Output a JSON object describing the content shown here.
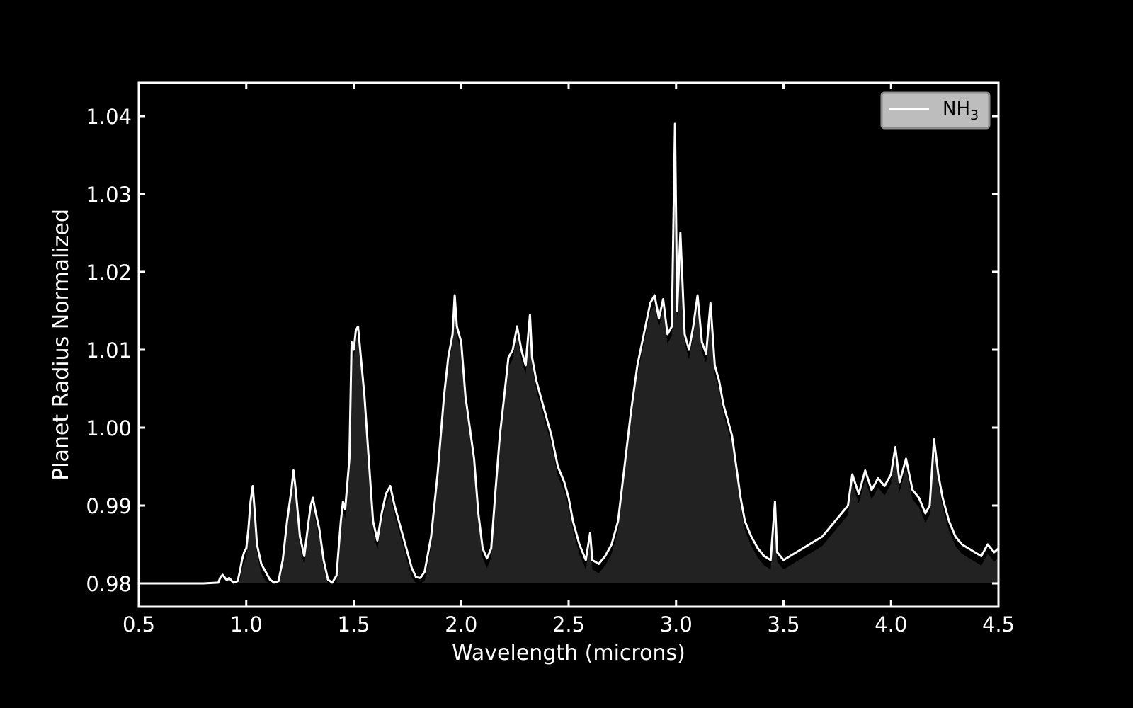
{
  "chart_data": {
    "type": "area",
    "title": "",
    "xlabel": "Wavelength (microns)",
    "ylabel": "Planet Radius Normalized",
    "xlim": [
      0.5,
      4.5
    ],
    "ylim": [
      0.977,
      1.0445
    ],
    "grid": false,
    "legend_position": "upper right",
    "background": "#000000",
    "line_color": "#ffffff",
    "fill_color": "#222222",
    "fill_baseline": 0.98,
    "x_ticks": [
      "0.5",
      "1.0",
      "1.5",
      "2.0",
      "2.5",
      "3.0",
      "3.5",
      "4.0",
      "4.5"
    ],
    "y_ticks": [
      "0.98",
      "0.99",
      "1.00",
      "1.01",
      "1.02",
      "1.03",
      "1.04"
    ],
    "series": [
      {
        "name": "NH3",
        "legend_label_main": "NH",
        "legend_label_sub": "3",
        "points": [
          [
            0.5,
            0.98
          ],
          [
            0.6,
            0.98
          ],
          [
            0.7,
            0.98
          ],
          [
            0.8,
            0.98
          ],
          [
            0.87,
            0.9801
          ],
          [
            0.88,
            0.9808
          ],
          [
            0.89,
            0.9811
          ],
          [
            0.91,
            0.9804
          ],
          [
            0.92,
            0.9807
          ],
          [
            0.94,
            0.9801
          ],
          [
            0.96,
            0.9803
          ],
          [
            0.97,
            0.9815
          ],
          [
            0.98,
            0.983
          ],
          [
            0.99,
            0.984
          ],
          [
            1.0,
            0.9845
          ],
          [
            1.01,
            0.987
          ],
          [
            1.02,
            0.9905
          ],
          [
            1.03,
            0.9925
          ],
          [
            1.04,
            0.989
          ],
          [
            1.05,
            0.985
          ],
          [
            1.07,
            0.9825
          ],
          [
            1.09,
            0.9815
          ],
          [
            1.11,
            0.9805
          ],
          [
            1.13,
            0.9801
          ],
          [
            1.15,
            0.9803
          ],
          [
            1.17,
            0.983
          ],
          [
            1.19,
            0.988
          ],
          [
            1.21,
            0.992
          ],
          [
            1.22,
            0.9945
          ],
          [
            1.23,
            0.992
          ],
          [
            1.25,
            0.986
          ],
          [
            1.27,
            0.9835
          ],
          [
            1.29,
            0.988
          ],
          [
            1.3,
            0.99
          ],
          [
            1.31,
            0.991
          ],
          [
            1.32,
            0.9895
          ],
          [
            1.34,
            0.987
          ],
          [
            1.36,
            0.983
          ],
          [
            1.38,
            0.9805
          ],
          [
            1.4,
            0.9801
          ],
          [
            1.42,
            0.981
          ],
          [
            1.44,
            0.988
          ],
          [
            1.45,
            0.9905
          ],
          [
            1.46,
            0.9895
          ],
          [
            1.48,
            0.996
          ],
          [
            1.49,
            1.011
          ],
          [
            1.5,
            1.01
          ],
          [
            1.51,
            1.0125
          ],
          [
            1.52,
            1.013
          ],
          [
            1.53,
            1.01
          ],
          [
            1.55,
            1.004
          ],
          [
            1.57,
            0.996
          ],
          [
            1.59,
            0.988
          ],
          [
            1.61,
            0.9855
          ],
          [
            1.63,
            0.989
          ],
          [
            1.65,
            0.9915
          ],
          [
            1.67,
            0.9925
          ],
          [
            1.69,
            0.99
          ],
          [
            1.71,
            0.988
          ],
          [
            1.73,
            0.986
          ],
          [
            1.75,
            0.984
          ],
          [
            1.77,
            0.982
          ],
          [
            1.79,
            0.9808
          ],
          [
            1.81,
            0.9807
          ],
          [
            1.83,
            0.9815
          ],
          [
            1.86,
            0.986
          ],
          [
            1.89,
            0.994
          ],
          [
            1.92,
            1.004
          ],
          [
            1.94,
            1.009
          ],
          [
            1.96,
            1.012
          ],
          [
            1.97,
            1.017
          ],
          [
            1.98,
            1.013
          ],
          [
            2.0,
            1.011
          ],
          [
            2.02,
            1.004
          ],
          [
            2.04,
            1.0
          ],
          [
            2.06,
            0.996
          ],
          [
            2.08,
            0.989
          ],
          [
            2.1,
            0.9845
          ],
          [
            2.12,
            0.9832
          ],
          [
            2.14,
            0.9845
          ],
          [
            2.16,
            0.992
          ],
          [
            2.18,
            0.999
          ],
          [
            2.2,
            1.004
          ],
          [
            2.22,
            1.009
          ],
          [
            2.24,
            1.01
          ],
          [
            2.26,
            1.013
          ],
          [
            2.28,
            1.01
          ],
          [
            2.3,
            1.008
          ],
          [
            2.32,
            1.0145
          ],
          [
            2.33,
            1.009
          ],
          [
            2.35,
            1.006
          ],
          [
            2.37,
            1.004
          ],
          [
            2.4,
            1.001
          ],
          [
            2.42,
            0.999
          ],
          [
            2.45,
            0.995
          ],
          [
            2.48,
            0.993
          ],
          [
            2.5,
            0.991
          ],
          [
            2.52,
            0.988
          ],
          [
            2.55,
            0.985
          ],
          [
            2.58,
            0.983
          ],
          [
            2.6,
            0.9865
          ],
          [
            2.61,
            0.983
          ],
          [
            2.64,
            0.9825
          ],
          [
            2.67,
            0.9835
          ],
          [
            2.7,
            0.985
          ],
          [
            2.73,
            0.988
          ],
          [
            2.76,
            0.995
          ],
          [
            2.79,
            1.002
          ],
          [
            2.82,
            1.008
          ],
          [
            2.85,
            1.012
          ],
          [
            2.88,
            1.016
          ],
          [
            2.9,
            1.017
          ],
          [
            2.92,
            1.014
          ],
          [
            2.94,
            1.0165
          ],
          [
            2.96,
            1.012
          ],
          [
            2.98,
            1.013
          ],
          [
            2.995,
            1.039
          ],
          [
            3.005,
            1.015
          ],
          [
            3.02,
            1.025
          ],
          [
            3.04,
            1.012
          ],
          [
            3.06,
            1.01
          ],
          [
            3.08,
            1.013
          ],
          [
            3.1,
            1.017
          ],
          [
            3.12,
            1.011
          ],
          [
            3.14,
            1.0095
          ],
          [
            3.16,
            1.016
          ],
          [
            3.18,
            1.008
          ],
          [
            3.2,
            1.006
          ],
          [
            3.22,
            1.003
          ],
          [
            3.24,
            1.001
          ],
          [
            3.26,
            0.999
          ],
          [
            3.28,
            0.995
          ],
          [
            3.3,
            0.991
          ],
          [
            3.32,
            0.988
          ],
          [
            3.35,
            0.986
          ],
          [
            3.38,
            0.9845
          ],
          [
            3.41,
            0.9835
          ],
          [
            3.44,
            0.983
          ],
          [
            3.46,
            0.9905
          ],
          [
            3.47,
            0.984
          ],
          [
            3.5,
            0.983
          ],
          [
            3.53,
            0.9835
          ],
          [
            3.56,
            0.984
          ],
          [
            3.59,
            0.9845
          ],
          [
            3.62,
            0.985
          ],
          [
            3.65,
            0.9855
          ],
          [
            3.68,
            0.986
          ],
          [
            3.71,
            0.987
          ],
          [
            3.74,
            0.988
          ],
          [
            3.77,
            0.989
          ],
          [
            3.8,
            0.99
          ],
          [
            3.82,
            0.994
          ],
          [
            3.85,
            0.9915
          ],
          [
            3.88,
            0.9945
          ],
          [
            3.91,
            0.992
          ],
          [
            3.94,
            0.9935
          ],
          [
            3.97,
            0.9925
          ],
          [
            4.0,
            0.994
          ],
          [
            4.02,
            0.9975
          ],
          [
            4.04,
            0.993
          ],
          [
            4.07,
            0.996
          ],
          [
            4.1,
            0.992
          ],
          [
            4.13,
            0.991
          ],
          [
            4.16,
            0.989
          ],
          [
            4.18,
            0.99
          ],
          [
            4.2,
            0.9985
          ],
          [
            4.22,
            0.994
          ],
          [
            4.24,
            0.991
          ],
          [
            4.27,
            0.988
          ],
          [
            4.3,
            0.986
          ],
          [
            4.33,
            0.985
          ],
          [
            4.36,
            0.9845
          ],
          [
            4.39,
            0.984
          ],
          [
            4.42,
            0.9835
          ],
          [
            4.45,
            0.985
          ],
          [
            4.48,
            0.984
          ],
          [
            4.5,
            0.9845
          ]
        ]
      }
    ]
  }
}
